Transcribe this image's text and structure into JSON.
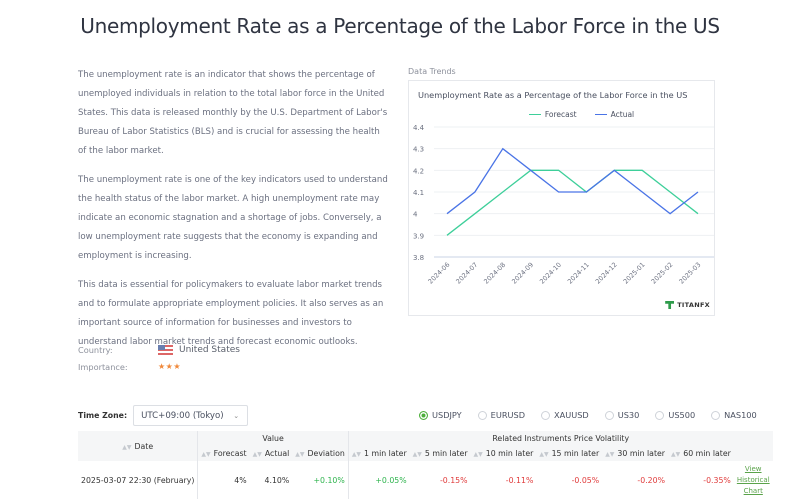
{
  "page": {
    "title": "Unemployment Rate as a Percentage of the Labor Force in the US"
  },
  "description": {
    "paragraphs": [
      "The unemployment rate is an indicator that shows the percentage of unemployed individuals in relation to the total labor force in the United States. This data is released monthly by the U.S. Department of Labor's Bureau of Labor Statistics (BLS) and is crucial for assessing the health of the labor market.",
      "The unemployment rate is one of the key indicators used to understand the health status of the labor market. A high unemployment rate may indicate an economic stagnation and a shortage of jobs. Conversely, a low unemployment rate suggests that the economy is expanding and employment is increasing.",
      "This data is essential for policymakers to evaluate labor market trends and to formulate appropriate employment policies. It also serves as an important source of information for businesses and investors to understand labor market trends and forecast economic outlooks."
    ]
  },
  "meta": {
    "country_label": "Country:",
    "country_value": "United States",
    "country_flag_icon": "us-flag-icon",
    "importance_label": "Importance:",
    "importance_stars": "★★★",
    "importance_level": 3
  },
  "trends": {
    "section_label": "Data Trends",
    "logo_text": "TITANFX"
  },
  "chart_data": {
    "type": "line",
    "title": "Unemployment Rate as a Percentage of the Labor Force in the US",
    "xlabel": "",
    "ylabel": "",
    "categories": [
      "2024-06",
      "2024-07",
      "2024-08",
      "2024-09",
      "2024-10",
      "2024-11",
      "2024-12",
      "2025-01",
      "2025-02",
      "2025-03"
    ],
    "series": [
      {
        "name": "Forecast",
        "color": "#3ecf9a",
        "values": [
          3.9,
          4.0,
          4.1,
          4.2,
          4.2,
          4.1,
          4.2,
          4.2,
          4.1,
          4.0
        ]
      },
      {
        "name": "Actual",
        "color": "#4a74e6",
        "values": [
          4.0,
          4.1,
          4.3,
          4.2,
          4.1,
          4.1,
          4.2,
          4.1,
          4.0,
          4.1
        ]
      }
    ],
    "ylim": [
      3.8,
      4.4
    ],
    "yticks": [
      "3.8",
      "3.9",
      "4",
      "4.1",
      "4.2",
      "4.3",
      "4.4"
    ],
    "grid": true,
    "legend_position": "top-center"
  },
  "controls": {
    "timezone_label": "Time Zone:",
    "timezone_value": "UTC+09:00 (Tokyo)",
    "instruments": [
      {
        "label": "USDJPY",
        "selected": true
      },
      {
        "label": "EURUSD",
        "selected": false
      },
      {
        "label": "XAUUSD",
        "selected": false
      },
      {
        "label": "US30",
        "selected": false
      },
      {
        "label": "US500",
        "selected": false
      },
      {
        "label": "NAS100",
        "selected": false
      }
    ]
  },
  "table": {
    "group_headers": {
      "date": "Date",
      "value": "Value",
      "volatility": "Related Instruments Price Volatility"
    },
    "columns": [
      "Forecast",
      "Actual",
      "Deviation",
      "1 min later",
      "5 min later",
      "10 min later",
      "15 min later",
      "30 min later",
      "60 min later"
    ],
    "rows": [
      {
        "date": "2025-03-07 22:30 (February)",
        "forecast": "4%",
        "actual": "4.10%",
        "deviation": "+0.10%",
        "v1": "+0.05%",
        "v5": "-0.15%",
        "v10": "-0.11%",
        "v15": "-0.05%",
        "v30": "-0.20%",
        "v60": "-0.35%",
        "link": "View Historical Chart"
      }
    ]
  }
}
